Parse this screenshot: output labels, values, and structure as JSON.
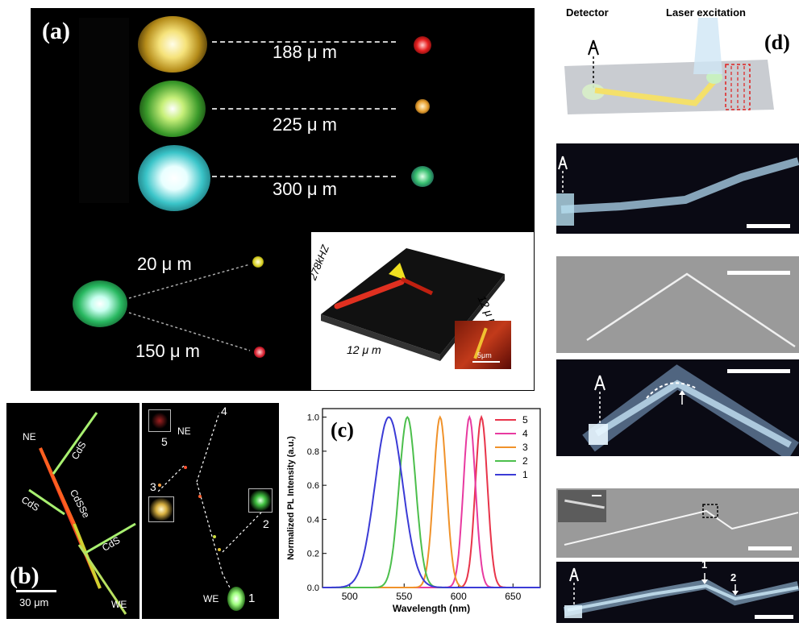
{
  "panels": {
    "a": {
      "label": "(a)",
      "distances": [
        "188 μ m",
        "225 μ m",
        "300 μ m"
      ],
      "distances_small": [
        "20 μ m",
        "150 μ m"
      ],
      "inset": {
        "freq_label": "278kHZ",
        "x_label": "12 μ m",
        "y_label": "12 μ m",
        "scale": "5μm"
      }
    },
    "b": {
      "label": "(b)",
      "wire_labels": {
        "ne": "NE",
        "cds1": "CdS",
        "cdsse": "CdSSe",
        "cds2": "CdS",
        "cds3": "CdS",
        "we": "WE"
      },
      "scale_bar": "30 μm",
      "right_labels": {
        "ne": "NE",
        "we": "WE",
        "n1": "1",
        "n2": "2",
        "n3": "3",
        "n4": "4",
        "n5": "5"
      }
    },
    "c": {
      "label": "(c)"
    },
    "d": {
      "label": "(d)",
      "detector_label": "Detector",
      "laser_label": "Laser excitation",
      "markers": {
        "m1": "1",
        "m2": "2"
      }
    }
  },
  "chart_data": {
    "type": "line",
    "title": "",
    "xlabel": "Wavelength (nm)",
    "ylabel": "Normalized PL Intensity (a.u.)",
    "xlim": [
      475,
      675
    ],
    "ylim": [
      0,
      1.05
    ],
    "xticks": [
      "500",
      "550",
      "600",
      "650"
    ],
    "yticks": [
      "0.0",
      "0.2",
      "0.4",
      "0.6",
      "0.8",
      "1.0"
    ],
    "legend_position": "top-right",
    "series": [
      {
        "name": "5",
        "color": "#e8344a",
        "peak": 621,
        "fwhm": 13
      },
      {
        "name": "4",
        "color": "#e83aa0",
        "peak": 610,
        "fwhm": 13
      },
      {
        "name": "3",
        "color": "#f0922a",
        "peak": 583,
        "fwhm": 14
      },
      {
        "name": "2",
        "color": "#4cbf4c",
        "peak": 553,
        "fwhm": 18
      },
      {
        "name": "1",
        "color": "#3b3bd6",
        "peak": 536,
        "fwhm": 30
      }
    ]
  }
}
